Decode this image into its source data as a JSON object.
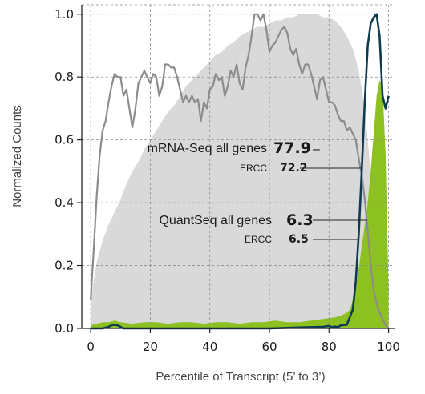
{
  "chart_data": {
    "type": "area",
    "xlabel": "Percentile of Transcript (5’ to 3’)",
    "ylabel": "Normalized Counts",
    "xlim": [
      -3,
      102
    ],
    "ylim": [
      0,
      1.03
    ],
    "x_ticks": [
      0,
      20,
      40,
      60,
      80,
      100
    ],
    "y_ticks": [
      0.0,
      0.2,
      0.4,
      0.6,
      0.8,
      1.0
    ],
    "x_tick_labels": [
      "0",
      "20",
      "40",
      "60",
      "80",
      "100"
    ],
    "y_tick_labels": [
      "0.0",
      "0.2",
      "0.4",
      "0.6",
      "0.8",
      "1.0"
    ],
    "grid": true,
    "series": [
      {
        "kind": "area",
        "color": "#d9d9d9",
        "x": [
          0,
          2,
          4,
          6,
          8,
          10,
          12,
          14,
          16,
          18,
          20,
          22,
          24,
          26,
          28,
          30,
          32,
          34,
          36,
          38,
          40,
          42,
          44,
          46,
          48,
          50,
          52,
          54,
          56,
          58,
          60,
          62,
          64,
          66,
          68,
          70,
          72,
          74,
          76,
          78,
          80,
          82,
          84,
          86,
          88,
          90,
          92,
          94,
          96,
          98,
          100
        ],
        "y": [
          0.09,
          0.21,
          0.28,
          0.33,
          0.37,
          0.41,
          0.46,
          0.5,
          0.53,
          0.57,
          0.6,
          0.63,
          0.66,
          0.69,
          0.71,
          0.74,
          0.77,
          0.79,
          0.81,
          0.83,
          0.85,
          0.87,
          0.88,
          0.9,
          0.91,
          0.93,
          0.94,
          0.95,
          0.96,
          0.96,
          0.97,
          0.98,
          0.98,
          0.99,
          0.99,
          1.0,
          1.0,
          1.0,
          1.0,
          0.99,
          0.99,
          0.98,
          0.96,
          0.93,
          0.89,
          0.82,
          0.7,
          0.5,
          0.3,
          0.12,
          0.02
        ]
      },
      {
        "kind": "line",
        "color": "#8c8c8c",
        "x": [
          0,
          1,
          2,
          3,
          4,
          5,
          6,
          7,
          8,
          9,
          10,
          11,
          12,
          13,
          14,
          15,
          16,
          17,
          18,
          19,
          20,
          21,
          22,
          23,
          24,
          25,
          26,
          27,
          28,
          29,
          30,
          31,
          32,
          33,
          34,
          35,
          36,
          37,
          38,
          39,
          40,
          41,
          42,
          43,
          44,
          45,
          46,
          47,
          48,
          49,
          50,
          51,
          52,
          53,
          54,
          55,
          56,
          57,
          58,
          59,
          60,
          61,
          62,
          63,
          64,
          65,
          66,
          67,
          68,
          69,
          70,
          71,
          72,
          73,
          74,
          75,
          76,
          77,
          78,
          79,
          80,
          81,
          82,
          83,
          84,
          85,
          86,
          87,
          88,
          89,
          90,
          91,
          92,
          93,
          94,
          95,
          96,
          97,
          98,
          99,
          100
        ],
        "y": [
          0.09,
          0.25,
          0.42,
          0.55,
          0.63,
          0.66,
          0.72,
          0.77,
          0.81,
          0.8,
          0.8,
          0.74,
          0.76,
          0.7,
          0.64,
          0.7,
          0.78,
          0.8,
          0.82,
          0.8,
          0.78,
          0.81,
          0.8,
          0.74,
          0.77,
          0.84,
          0.84,
          0.83,
          0.83,
          0.8,
          0.76,
          0.72,
          0.74,
          0.72,
          0.74,
          0.72,
          0.73,
          0.66,
          0.72,
          0.7,
          0.76,
          0.77,
          0.81,
          0.79,
          0.8,
          0.74,
          0.77,
          0.82,
          0.8,
          0.84,
          0.78,
          0.76,
          0.83,
          0.87,
          0.93,
          1.0,
          1.0,
          0.98,
          1.0,
          0.95,
          0.88,
          0.9,
          0.91,
          0.93,
          0.95,
          0.96,
          0.94,
          0.89,
          0.87,
          0.89,
          0.84,
          0.81,
          0.84,
          0.84,
          0.81,
          0.77,
          0.73,
          0.79,
          0.8,
          0.76,
          0.72,
          0.72,
          0.71,
          0.68,
          0.66,
          0.66,
          0.63,
          0.64,
          0.62,
          0.6,
          0.54,
          0.49,
          0.41,
          0.31,
          0.2,
          0.12,
          0.08,
          0.05,
          0.03,
          0.01,
          0.0
        ]
      },
      {
        "kind": "area",
        "color": "#8dc021",
        "x": [
          0,
          2,
          4,
          6,
          8,
          10,
          14,
          18,
          22,
          26,
          30,
          34,
          38,
          42,
          46,
          50,
          54,
          58,
          62,
          66,
          70,
          74,
          78,
          82,
          84,
          86,
          87,
          88,
          89,
          90,
          91,
          92,
          93,
          94,
          95,
          96,
          97,
          98,
          99,
          100
        ],
        "y": [
          0.01,
          0.015,
          0.02,
          0.02,
          0.025,
          0.02,
          0.015,
          0.02,
          0.02,
          0.015,
          0.02,
          0.02,
          0.015,
          0.02,
          0.02,
          0.015,
          0.02,
          0.02,
          0.025,
          0.02,
          0.02,
          0.025,
          0.03,
          0.035,
          0.04,
          0.05,
          0.06,
          0.09,
          0.13,
          0.19,
          0.26,
          0.33,
          0.4,
          0.5,
          0.62,
          0.74,
          0.79,
          0.77,
          0.55,
          0.12
        ]
      },
      {
        "kind": "line",
        "color": "#103a52",
        "x": [
          0,
          2,
          4,
          6,
          7,
          8,
          9,
          10,
          11,
          12,
          20,
          40,
          60,
          70,
          78,
          80,
          81,
          82,
          83,
          84,
          86,
          88,
          89,
          90,
          91,
          92,
          93,
          94,
          95,
          96,
          97,
          98,
          99,
          100
        ],
        "y": [
          0,
          0,
          0,
          0.005,
          0.01,
          0.012,
          0.01,
          0.005,
          0,
          0,
          0,
          0,
          0,
          0.003,
          0.005,
          0.008,
          0.004,
          0.006,
          0.004,
          0.01,
          0.012,
          0.06,
          0.15,
          0.3,
          0.5,
          0.72,
          0.9,
          0.97,
          0.99,
          1.0,
          0.93,
          0.74,
          0.7,
          0.74
        ]
      }
    ],
    "annotations": [
      {
        "label": "mRNA-Seq all genes",
        "value": "77.9",
        "style": "main",
        "dash": "–"
      },
      {
        "label": "ERCC",
        "value": "72.2",
        "style": "sub"
      },
      {
        "label": "QuantSeq all genes",
        "value": "6.3",
        "style": "main"
      },
      {
        "label": "ERCC",
        "value": "6.5",
        "style": "sub"
      }
    ]
  }
}
